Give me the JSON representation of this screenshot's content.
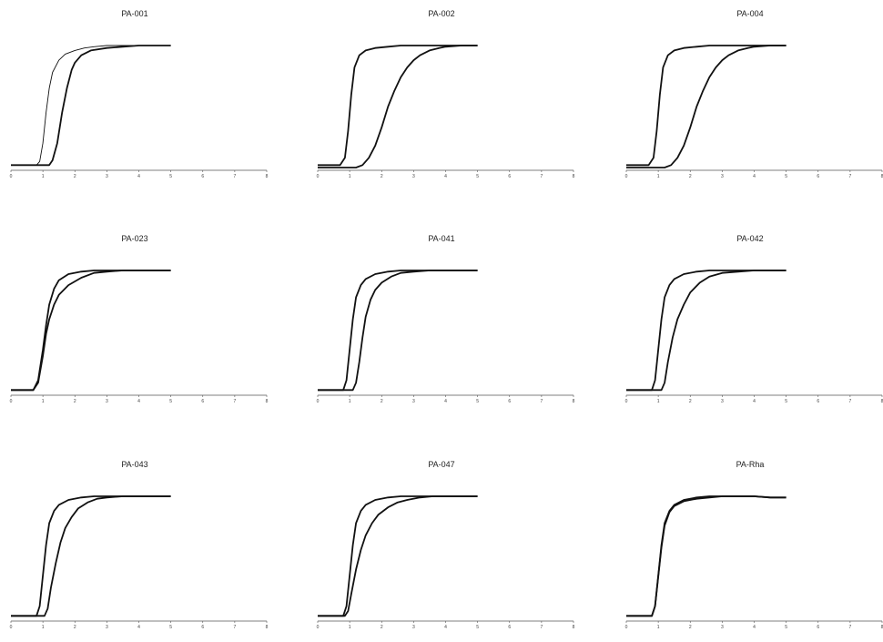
{
  "chart_data": [
    {
      "type": "line",
      "title": "PA-001",
      "xlim": [
        0,
        8
      ],
      "xticks": [
        "0",
        "1",
        "2",
        "3",
        "4",
        "5",
        "6",
        "7",
        "8"
      ],
      "ylim": [
        0,
        1
      ],
      "grid": false,
      "series": [
        {
          "x": [
            0,
            0.8,
            0.9,
            1.0,
            1.1,
            1.2,
            1.3,
            1.5,
            1.7,
            2.0,
            2.3,
            2.6,
            3.0,
            3.5,
            4.0,
            4.5,
            5.0
          ],
          "y": [
            0.02,
            0.02,
            0.05,
            0.2,
            0.45,
            0.65,
            0.78,
            0.88,
            0.93,
            0.96,
            0.98,
            0.99,
            1.0,
            1.0,
            1.0,
            1.0,
            1.0
          ],
          "stroke": "thin"
        },
        {
          "x": [
            0,
            1.2,
            1.3,
            1.45,
            1.6,
            1.75,
            1.9,
            2.0,
            2.2,
            2.5,
            3.0,
            3.5,
            4.0,
            4.5,
            5.0
          ],
          "y": [
            0.02,
            0.02,
            0.06,
            0.2,
            0.45,
            0.65,
            0.8,
            0.86,
            0.92,
            0.96,
            0.98,
            0.99,
            1.0,
            1.0,
            1.0
          ],
          "stroke": "thick"
        }
      ]
    },
    {
      "type": "line",
      "title": "PA-002",
      "xlim": [
        0,
        8
      ],
      "xticks": [
        "0",
        "1",
        "2",
        "3",
        "4",
        "5",
        "6",
        "7",
        "8"
      ],
      "ylim": [
        0,
        1
      ],
      "grid": false,
      "series": [
        {
          "x": [
            0,
            0.7,
            0.85,
            0.95,
            1.05,
            1.15,
            1.3,
            1.5,
            1.8,
            2.2,
            2.6,
            3.0,
            3.5,
            4.0,
            4.5,
            5.0
          ],
          "y": [
            0.02,
            0.02,
            0.08,
            0.3,
            0.6,
            0.82,
            0.92,
            0.96,
            0.98,
            0.99,
            1.0,
            1.0,
            1.0,
            1.0,
            1.0,
            1.0
          ],
          "stroke": "thick"
        },
        {
          "x": [
            0,
            1.2,
            1.4,
            1.6,
            1.8,
            2.0,
            2.2,
            2.4,
            2.6,
            2.8,
            3.0,
            3.2,
            3.5,
            3.8,
            4.0,
            4.5,
            5.0
          ],
          "y": [
            0.0,
            0.0,
            0.02,
            0.08,
            0.18,
            0.33,
            0.5,
            0.63,
            0.74,
            0.82,
            0.88,
            0.92,
            0.96,
            0.98,
            0.99,
            1.0,
            1.0
          ],
          "stroke": "thick"
        }
      ]
    },
    {
      "type": "line",
      "title": "PA-004",
      "xlim": [
        0,
        8
      ],
      "xticks": [
        "0",
        "1",
        "2",
        "3",
        "4",
        "5",
        "6",
        "7",
        "8"
      ],
      "ylim": [
        0,
        1
      ],
      "grid": false,
      "series": [
        {
          "x": [
            0,
            0.7,
            0.85,
            0.95,
            1.05,
            1.15,
            1.3,
            1.5,
            1.8,
            2.2,
            2.6,
            3.0,
            3.5,
            4.0,
            4.5,
            5.0
          ],
          "y": [
            0.02,
            0.02,
            0.08,
            0.3,
            0.6,
            0.82,
            0.92,
            0.96,
            0.98,
            0.99,
            1.0,
            1.0,
            1.0,
            1.0,
            1.0,
            1.0
          ],
          "stroke": "thick"
        },
        {
          "x": [
            0,
            1.2,
            1.4,
            1.6,
            1.8,
            2.0,
            2.2,
            2.4,
            2.6,
            2.8,
            3.0,
            3.2,
            3.5,
            3.8,
            4.0,
            4.5,
            5.0
          ],
          "y": [
            0.0,
            0.0,
            0.02,
            0.08,
            0.18,
            0.33,
            0.5,
            0.63,
            0.74,
            0.82,
            0.88,
            0.92,
            0.96,
            0.98,
            0.99,
            1.0,
            1.0
          ],
          "stroke": "thick"
        }
      ]
    },
    {
      "type": "line",
      "title": "PA-023",
      "xlim": [
        0,
        8
      ],
      "xticks": [
        "0",
        "1",
        "2",
        "3",
        "4",
        "5",
        "6",
        "7",
        "8"
      ],
      "ylim": [
        0,
        1
      ],
      "grid": false,
      "series": [
        {
          "x": [
            0,
            0.7,
            0.85,
            1.0,
            1.1,
            1.2,
            1.35,
            1.5,
            1.8,
            2.2,
            2.6,
            3.0,
            3.5,
            4.0,
            4.5,
            5.0
          ],
          "y": [
            0.02,
            0.02,
            0.1,
            0.35,
            0.55,
            0.72,
            0.85,
            0.92,
            0.97,
            0.99,
            1.0,
            1.0,
            1.0,
            1.0,
            1.0,
            1.0
          ],
          "stroke": "thick"
        },
        {
          "x": [
            0,
            0.7,
            0.85,
            1.0,
            1.1,
            1.2,
            1.35,
            1.5,
            1.8,
            2.2,
            2.6,
            3.0,
            3.5,
            4.0,
            4.5,
            5.0
          ],
          "y": [
            0.02,
            0.02,
            0.08,
            0.3,
            0.48,
            0.6,
            0.72,
            0.8,
            0.88,
            0.94,
            0.98,
            0.99,
            1.0,
            1.0,
            1.0,
            1.0
          ],
          "stroke": "thick"
        }
      ]
    },
    {
      "type": "line",
      "title": "PA-041",
      "xlim": [
        0,
        8
      ],
      "xticks": [
        "0",
        "1",
        "2",
        "3",
        "4",
        "5",
        "6",
        "7",
        "8"
      ],
      "ylim": [
        0,
        1
      ],
      "grid": false,
      "series": [
        {
          "x": [
            0,
            0.8,
            0.9,
            1.0,
            1.1,
            1.2,
            1.35,
            1.5,
            1.8,
            2.2,
            2.6,
            3.0,
            3.5,
            4.0,
            4.5,
            5.0
          ],
          "y": [
            0.02,
            0.02,
            0.1,
            0.35,
            0.6,
            0.78,
            0.88,
            0.93,
            0.97,
            0.99,
            1.0,
            1.0,
            1.0,
            1.0,
            1.0,
            1.0
          ],
          "stroke": "thick"
        },
        {
          "x": [
            0,
            1.1,
            1.2,
            1.3,
            1.4,
            1.5,
            1.65,
            1.8,
            2.0,
            2.3,
            2.6,
            3.0,
            3.5,
            4.0,
            4.5,
            5.0
          ],
          "y": [
            0.02,
            0.02,
            0.08,
            0.25,
            0.45,
            0.62,
            0.76,
            0.84,
            0.9,
            0.95,
            0.98,
            0.99,
            1.0,
            1.0,
            1.0,
            1.0
          ],
          "stroke": "thick"
        }
      ]
    },
    {
      "type": "line",
      "title": "PA-042",
      "xlim": [
        0,
        8
      ],
      "xticks": [
        "0",
        "1",
        "2",
        "3",
        "4",
        "5",
        "6",
        "7",
        "8"
      ],
      "ylim": [
        0,
        1
      ],
      "grid": false,
      "series": [
        {
          "x": [
            0,
            0.8,
            0.9,
            1.0,
            1.1,
            1.2,
            1.35,
            1.5,
            1.8,
            2.2,
            2.6,
            3.0,
            3.5,
            4.0,
            4.5,
            5.0
          ],
          "y": [
            0.02,
            0.02,
            0.1,
            0.35,
            0.6,
            0.78,
            0.88,
            0.93,
            0.97,
            0.99,
            1.0,
            1.0,
            1.0,
            1.0,
            1.0,
            1.0
          ],
          "stroke": "thick"
        },
        {
          "x": [
            0,
            1.1,
            1.2,
            1.3,
            1.45,
            1.6,
            1.8,
            2.0,
            2.3,
            2.6,
            3.0,
            3.5,
            4.0,
            4.5,
            5.0
          ],
          "y": [
            0.02,
            0.02,
            0.08,
            0.25,
            0.45,
            0.6,
            0.72,
            0.82,
            0.9,
            0.95,
            0.98,
            0.99,
            1.0,
            1.0,
            1.0
          ],
          "stroke": "thick"
        }
      ]
    },
    {
      "type": "line",
      "title": "PA-043",
      "xlim": [
        0,
        8
      ],
      "xticks": [
        "0",
        "1",
        "2",
        "3",
        "4",
        "5",
        "6",
        "7",
        "8"
      ],
      "ylim": [
        0,
        1
      ],
      "grid": false,
      "series": [
        {
          "x": [
            0,
            0.8,
            0.9,
            1.0,
            1.1,
            1.2,
            1.35,
            1.5,
            1.8,
            2.2,
            2.6,
            3.0,
            3.5,
            4.0,
            4.5,
            5.0
          ],
          "y": [
            0.02,
            0.02,
            0.1,
            0.35,
            0.6,
            0.78,
            0.88,
            0.93,
            0.97,
            0.99,
            1.0,
            1.0,
            1.0,
            1.0,
            1.0,
            1.0
          ],
          "stroke": "thick"
        },
        {
          "x": [
            0,
            1.05,
            1.15,
            1.25,
            1.4,
            1.55,
            1.7,
            1.9,
            2.1,
            2.4,
            2.7,
            3.0,
            3.5,
            4.0,
            4.5,
            5.0
          ],
          "y": [
            0.02,
            0.02,
            0.08,
            0.25,
            0.45,
            0.62,
            0.74,
            0.83,
            0.9,
            0.95,
            0.98,
            0.99,
            1.0,
            1.0,
            1.0,
            1.0
          ],
          "stroke": "thick"
        }
      ]
    },
    {
      "type": "line",
      "title": "PA-047",
      "xlim": [
        0,
        8
      ],
      "xticks": [
        "0",
        "1",
        "2",
        "3",
        "4",
        "5",
        "6",
        "7",
        "8"
      ],
      "ylim": [
        0,
        1
      ],
      "grid": false,
      "series": [
        {
          "x": [
            0,
            0.8,
            0.9,
            1.0,
            1.1,
            1.2,
            1.35,
            1.5,
            1.8,
            2.2,
            2.6,
            3.0,
            3.5,
            4.0,
            4.5,
            5.0
          ],
          "y": [
            0.02,
            0.02,
            0.1,
            0.35,
            0.6,
            0.78,
            0.88,
            0.93,
            0.97,
            0.99,
            1.0,
            1.0,
            1.0,
            1.0,
            1.0,
            1.0
          ],
          "stroke": "thick"
        },
        {
          "x": [
            0,
            0.85,
            0.95,
            1.05,
            1.2,
            1.35,
            1.5,
            1.7,
            1.9,
            2.2,
            2.5,
            2.8,
            3.2,
            3.6,
            4.0,
            4.5,
            5.0
          ],
          "y": [
            0.02,
            0.02,
            0.06,
            0.2,
            0.4,
            0.56,
            0.68,
            0.78,
            0.85,
            0.91,
            0.95,
            0.97,
            0.99,
            1.0,
            1.0,
            1.0,
            1.0
          ],
          "stroke": "thick"
        }
      ]
    },
    {
      "type": "line",
      "title": "PA-Rha",
      "xlim": [
        0,
        8
      ],
      "xticks": [
        "0",
        "1",
        "2",
        "3",
        "4",
        "5",
        "6",
        "7",
        "8"
      ],
      "ylim": [
        0,
        1
      ],
      "grid": false,
      "series": [
        {
          "x": [
            0,
            0.8,
            0.9,
            1.0,
            1.1,
            1.2,
            1.35,
            1.5,
            1.8,
            2.2,
            2.6,
            3.0,
            3.5,
            4.0,
            4.5,
            5.0
          ],
          "y": [
            0.02,
            0.02,
            0.1,
            0.35,
            0.6,
            0.78,
            0.88,
            0.93,
            0.97,
            0.99,
            1.0,
            1.0,
            1.0,
            1.0,
            0.99,
            0.99
          ],
          "stroke": "thick"
        },
        {
          "x": [
            0,
            0.8,
            0.9,
            1.0,
            1.1,
            1.2,
            1.35,
            1.5,
            1.8,
            2.2,
            2.6,
            3.0,
            3.5,
            4.0,
            4.5,
            5.0
          ],
          "y": [
            0.02,
            0.02,
            0.1,
            0.34,
            0.58,
            0.76,
            0.87,
            0.92,
            0.96,
            0.98,
            0.99,
            1.0,
            1.0,
            1.0,
            0.99,
            0.99
          ],
          "stroke": "thick"
        }
      ]
    }
  ]
}
